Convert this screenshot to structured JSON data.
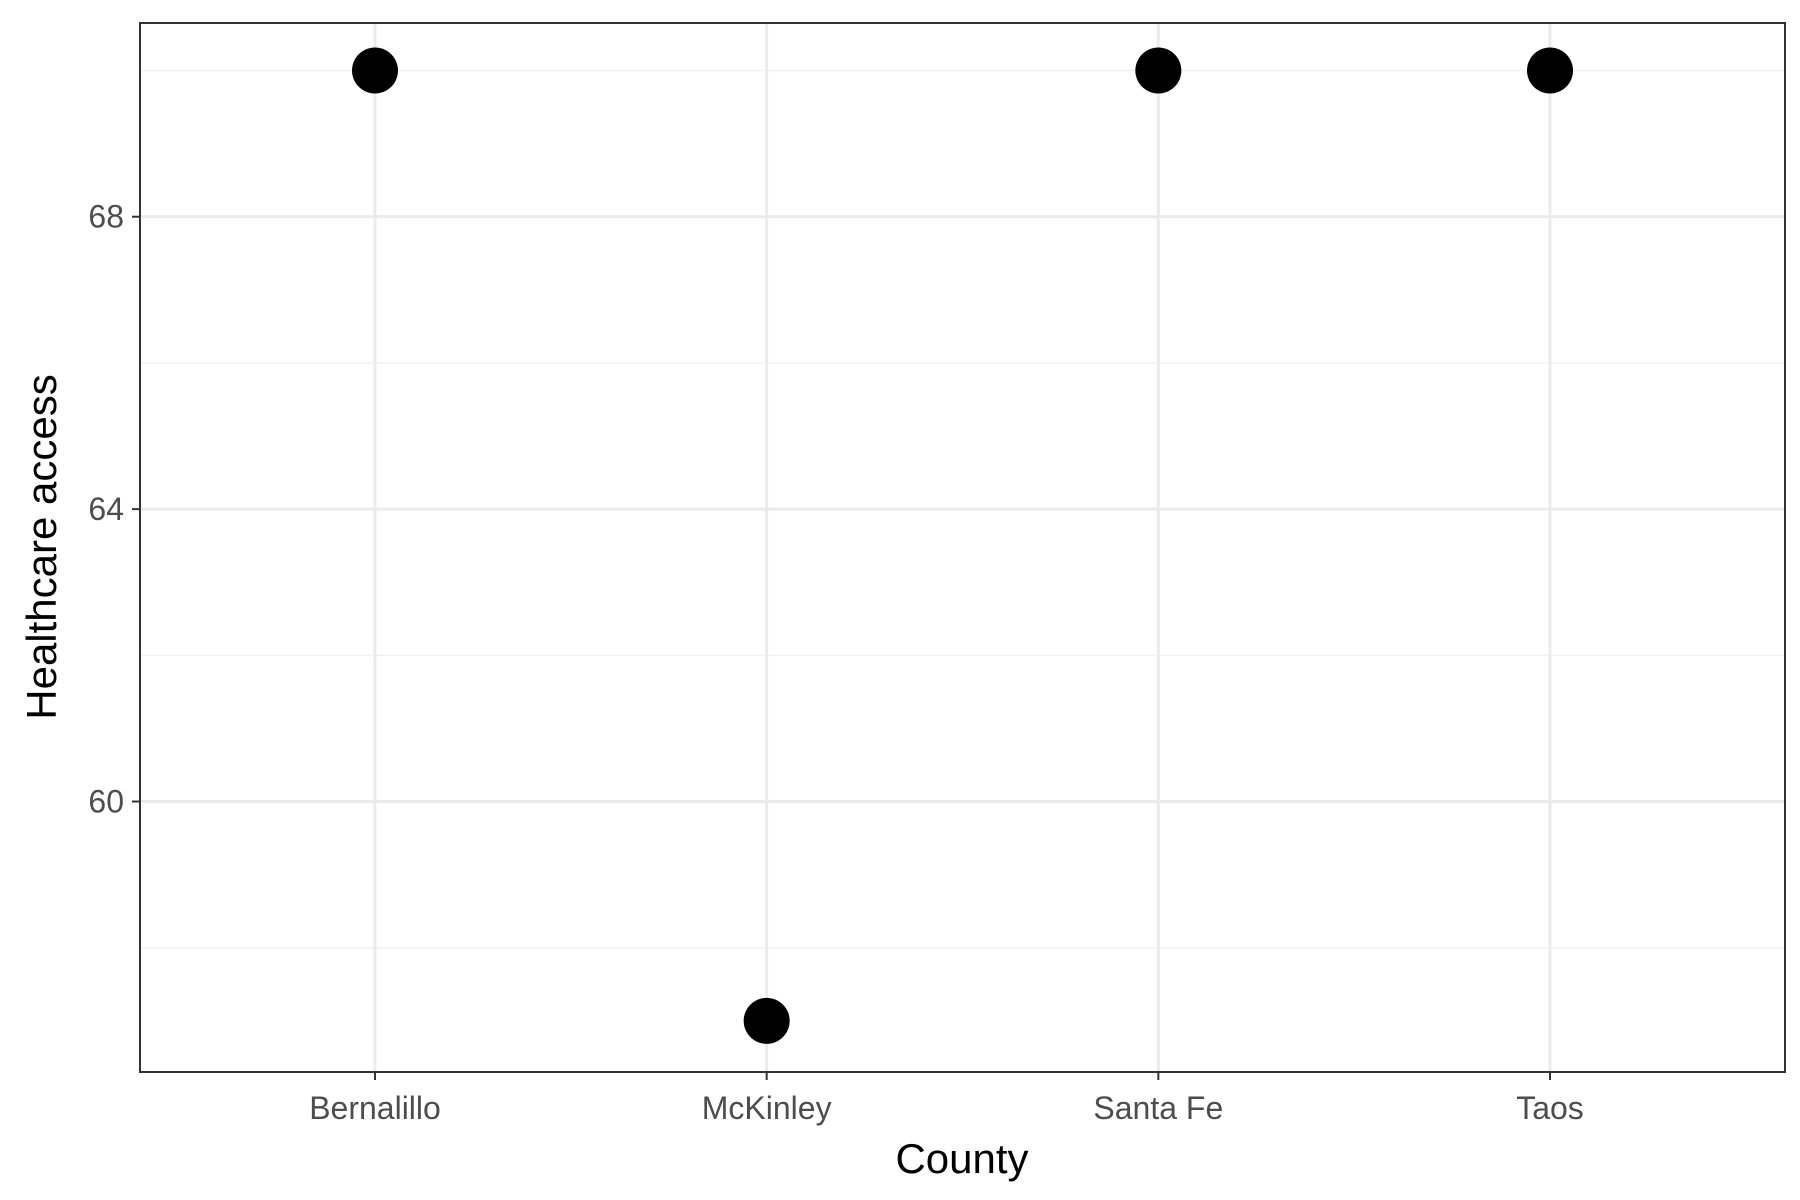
{
  "chart_data": {
    "type": "scatter",
    "title": "",
    "xlabel": "County",
    "ylabel": "Healthcare access",
    "categories": [
      "Bernalillo",
      "McKinley",
      "Santa Fe",
      "Taos"
    ],
    "values": [
      70,
      57,
      70,
      70
    ],
    "ylim": [
      56.3,
      70.65
    ],
    "y_major_ticks": [
      60,
      64,
      68
    ],
    "y_minor_ticks": [
      58,
      62,
      66,
      70
    ],
    "grid": true,
    "legend": "none",
    "theme": "bw",
    "colors": {
      "point": "#000000",
      "grid_major": "#ebebeb",
      "grid_minor": "#f2f2f2",
      "panel_border": "#333333",
      "tick_text": "#4d4d4d",
      "axis_title": "#000000"
    }
  }
}
